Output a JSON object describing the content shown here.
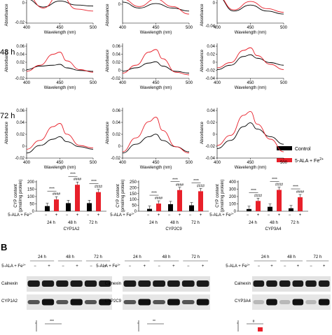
{
  "figure": {
    "panel_b_label": "B",
    "row_labels": [
      "48 h",
      "72 h"
    ],
    "x_axis_label": "Wavelength (nm)",
    "y_axis_label": "Absorbance",
    "x_ticks": [
      "400",
      "450",
      "500"
    ],
    "spectra_rows": [
      {
        "panels": [
          {
            "y_ticks": [
              "0",
              "-0.02"
            ]
          },
          {
            "y_ticks": [
              "0"
            ]
          },
          {
            "y_ticks": [
              "0",
              "-0.04"
            ]
          }
        ]
      },
      {
        "panels": [
          {
            "y_ticks": [
              "0.06",
              "0.04",
              "0.02",
              "0",
              "-0.02"
            ]
          },
          {
            "y_ticks": [
              "0.06",
              "0.04",
              "0.02",
              "0",
              "-0.02"
            ]
          },
          {
            "y_ticks": [
              "0.04",
              "0.02",
              "0",
              "-0.02",
              "-0.04"
            ]
          }
        ]
      },
      {
        "panels": [
          {
            "y_ticks": [
              "0.06",
              "0.04",
              "0.02",
              "0",
              "-0.02"
            ]
          },
          {
            "y_ticks": [
              "0.06",
              "0.04",
              "0.02",
              "0",
              "-0.02"
            ]
          },
          {
            "y_ticks": [
              "0.04",
              "0.02",
              "0",
              "-0.02",
              "-0.04"
            ]
          }
        ]
      }
    ],
    "legend": {
      "control": "Control",
      "treated": "5-ALA + Fe",
      "treated_sup": "2+"
    },
    "colors": {
      "control": "#000000",
      "treated": "#e8202a"
    },
    "bar_y_label_1": "CYP content",
    "bar_y_label_2": "(pmol/mg protein)",
    "bar_group_labels": [
      "24 h",
      "48 h",
      "72 h"
    ],
    "treatment_label": "5-ALA + Fe",
    "treatment_sup": "2+",
    "minus": "−",
    "plus": "+",
    "sig_control": "****",
    "sig_treated": "####",
    "bar_panels": [
      {
        "name": "CYP1A2",
        "y_ticks": [
          "200",
          "150",
          "100",
          "50",
          "0"
        ],
        "ymax": 200
      },
      {
        "name": "CYP2C9",
        "y_ticks": [
          "250",
          "200",
          "150",
          "100",
          "50",
          "0"
        ],
        "ymax": 250
      },
      {
        "name": "CYP3A4",
        "y_ticks": [
          "400",
          "300",
          "200",
          "100",
          "0"
        ],
        "ymax": 400
      }
    ],
    "blots": [
      {
        "timepoints": [
          "24 h",
          "48 h",
          "72 h"
        ],
        "loading": "Calnexin",
        "target": "CYP1A2"
      },
      {
        "timepoints": [
          "24 h",
          "48 h",
          "72 h"
        ],
        "loading": "Calnexin",
        "target": "CYP2C9"
      },
      {
        "timepoints": [
          "24 h",
          "48 h",
          "72 h"
        ],
        "loading": "Calnexin",
        "target": "CYP3A4"
      }
    ],
    "bottom_marks": [
      "***",
      "**",
      "#"
    ]
  },
  "chart_data": [
    {
      "type": "line",
      "panel": "spectra-row1-col1",
      "x": [
        400,
        425,
        450,
        475,
        500
      ],
      "ylim": [
        -0.02,
        0.01
      ],
      "series": [
        {
          "name": "Control",
          "values": [
            0.004,
            -0.004,
            0.002,
            -0.002,
            -0.003
          ]
        },
        {
          "name": "5-ALA + Fe2+",
          "values": [
            0.008,
            -0.005,
            0.009,
            -0.006,
            -0.008
          ]
        }
      ]
    },
    {
      "type": "line",
      "panel": "spectra-row1-col2",
      "x": [
        400,
        425,
        450,
        475,
        500
      ],
      "ylim": [
        -0.01,
        0.01
      ],
      "series": [
        {
          "name": "Control",
          "values": [
            0.004,
            0.0,
            0.003,
            0.0,
            -0.002
          ]
        },
        {
          "name": "5-ALA + Fe2+",
          "values": [
            0.006,
            0.001,
            0.006,
            0.001,
            -0.004
          ]
        }
      ]
    },
    {
      "type": "line",
      "panel": "spectra-row1-col3",
      "x": [
        400,
        425,
        450,
        475,
        500
      ],
      "ylim": [
        -0.04,
        0.01
      ],
      "series": [
        {
          "name": "Control",
          "values": [
            0.005,
            -0.02,
            -0.01,
            -0.02,
            -0.025
          ]
        },
        {
          "name": "5-ALA + Fe2+",
          "values": [
            0.006,
            -0.018,
            -0.004,
            -0.016,
            -0.022
          ]
        }
      ]
    },
    {
      "type": "line",
      "panel": "spectra-48h-CYP1A2",
      "x": [
        400,
        420,
        440,
        450,
        460,
        480,
        500
      ],
      "ylim": [
        -0.02,
        0.06
      ],
      "series": [
        {
          "name": "Control",
          "values": [
            0.0,
            0.008,
            0.01,
            0.012,
            0.004,
            -0.002,
            -0.004
          ]
        },
        {
          "name": "5-ALA + Fe2+",
          "values": [
            -0.004,
            0.01,
            0.035,
            0.04,
            0.02,
            0.0,
            -0.006
          ]
        }
      ]
    },
    {
      "type": "line",
      "panel": "spectra-48h-CYP2C9",
      "x": [
        400,
        420,
        440,
        450,
        460,
        480,
        500
      ],
      "ylim": [
        -0.02,
        0.06
      ],
      "series": [
        {
          "name": "Control",
          "values": [
            -0.004,
            0.004,
            0.015,
            0.018,
            0.008,
            -0.004,
            -0.008
          ]
        },
        {
          "name": "5-ALA + Fe2+",
          "values": [
            -0.008,
            0.01,
            0.04,
            0.046,
            0.025,
            -0.006,
            -0.012
          ]
        }
      ]
    },
    {
      "type": "line",
      "panel": "spectra-48h-CYP3A4",
      "x": [
        400,
        420,
        440,
        450,
        460,
        480,
        500
      ],
      "ylim": [
        -0.04,
        0.04
      ],
      "series": [
        {
          "name": "Control",
          "values": [
            -0.02,
            -0.01,
            0.01,
            0.014,
            0.006,
            -0.004,
            -0.01
          ]
        },
        {
          "name": "5-ALA + Fe2+",
          "values": [
            -0.016,
            -0.004,
            0.024,
            0.03,
            0.012,
            -0.008,
            -0.02
          ]
        }
      ]
    },
    {
      "type": "line",
      "panel": "spectra-72h-CYP1A2",
      "x": [
        400,
        420,
        440,
        450,
        460,
        480,
        500
      ],
      "ylim": [
        -0.02,
        0.06
      ],
      "series": [
        {
          "name": "Control",
          "values": [
            -0.012,
            0.0,
            0.01,
            0.014,
            0.006,
            -0.002,
            -0.006
          ]
        },
        {
          "name": "5-ALA + Fe2+",
          "values": [
            -0.006,
            0.008,
            0.03,
            0.035,
            0.018,
            0.0,
            -0.004
          ]
        }
      ]
    },
    {
      "type": "line",
      "panel": "spectra-72h-CYP2C9",
      "x": [
        400,
        420,
        440,
        450,
        460,
        480,
        500
      ],
      "ylim": [
        -0.02,
        0.06
      ],
      "series": [
        {
          "name": "Control",
          "values": [
            -0.012,
            0.002,
            0.014,
            0.018,
            0.008,
            -0.002,
            -0.01
          ]
        },
        {
          "name": "5-ALA + Fe2+",
          "values": [
            -0.01,
            0.012,
            0.038,
            0.045,
            0.024,
            -0.002,
            -0.012
          ]
        }
      ]
    },
    {
      "type": "line",
      "panel": "spectra-72h-CYP3A4",
      "x": [
        400,
        420,
        440,
        450,
        460,
        480,
        500
      ],
      "ylim": [
        -0.04,
        0.04
      ],
      "series": [
        {
          "name": "Control",
          "values": [
            -0.025,
            -0.012,
            0.01,
            0.016,
            0.006,
            -0.006,
            -0.018
          ]
        },
        {
          "name": "5-ALA + Fe2+",
          "values": [
            -0.02,
            -0.004,
            0.028,
            0.034,
            0.014,
            -0.01,
            -0.03
          ]
        }
      ]
    },
    {
      "type": "bar",
      "panel": "CYP1A2",
      "categories": [
        "24 h",
        "48 h",
        "72 h"
      ],
      "ylim": [
        0,
        200
      ],
      "ylabel": "CYP content (pmol/mg protein)",
      "series": [
        {
          "name": "Control",
          "values": [
            35,
            55,
            55
          ]
        },
        {
          "name": "5-ALA + Fe2+",
          "values": [
            80,
            180,
            130
          ]
        }
      ]
    },
    {
      "type": "bar",
      "panel": "CYP2C9",
      "categories": [
        "24 h",
        "48 h",
        "72 h"
      ],
      "ylim": [
        0,
        250
      ],
      "ylabel": "CYP content (pmol/mg protein)",
      "series": [
        {
          "name": "Control",
          "values": [
            20,
            60,
            50
          ]
        },
        {
          "name": "5-ALA + Fe2+",
          "values": [
            65,
            180,
            170
          ]
        }
      ]
    },
    {
      "type": "bar",
      "panel": "CYP3A4",
      "categories": [
        "24 h",
        "48 h",
        "72 h"
      ],
      "ylim": [
        0,
        400
      ],
      "ylabel": "CYP content (pmol/mg protein)",
      "series": [
        {
          "name": "Control",
          "values": [
            30,
            60,
            40
          ]
        },
        {
          "name": "5-ALA + Fe2+",
          "values": [
            140,
            290,
            190
          ]
        }
      ]
    }
  ]
}
